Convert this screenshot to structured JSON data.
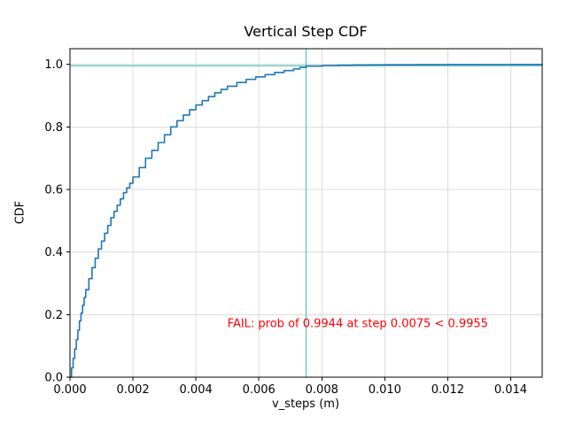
{
  "figure": {
    "background": "#ffffff"
  },
  "chart_data": {
    "type": "line",
    "title": "Vertical Step CDF",
    "xlabel": "v_steps (m)",
    "ylabel": "CDF",
    "xlim": [
      0,
      0.015
    ],
    "ylim": [
      0,
      1.05
    ],
    "xticks": [
      0,
      0.002,
      0.004,
      0.006,
      0.008,
      0.01,
      0.012,
      0.014
    ],
    "xtick_labels": [
      "0.000",
      "0.002",
      "0.004",
      "0.006",
      "0.008",
      "0.010",
      "0.012",
      "0.014"
    ],
    "yticks": [
      0.0,
      0.2,
      0.4,
      0.6,
      0.8,
      1.0
    ],
    "ytick_labels": [
      "0.0",
      "0.2",
      "0.4",
      "0.6",
      "0.8",
      "1.0"
    ],
    "grid": true,
    "grid_color": "#dcdcdc",
    "step_style": "post",
    "series": [
      {
        "name": "vertical-step-cdf",
        "color": "#1f77b4",
        "x": [
          0,
          5e-05,
          0.0001,
          0.00015,
          0.0002,
          0.00025,
          0.0003,
          0.00035,
          0.0004,
          0.00045,
          0.0005,
          0.0006,
          0.0007,
          0.0008,
          0.0009,
          0.001,
          0.0011,
          0.0012,
          0.0013,
          0.0014,
          0.0015,
          0.0016,
          0.0017,
          0.0018,
          0.0019,
          0.002,
          0.0022,
          0.0024,
          0.0026,
          0.0028,
          0.003,
          0.0032,
          0.0034,
          0.0036,
          0.0038,
          0.004,
          0.0042,
          0.0044,
          0.0046,
          0.0048,
          0.005,
          0.0053,
          0.0056,
          0.0059,
          0.0062,
          0.0065,
          0.0068,
          0.0071,
          0.0073,
          0.0075,
          0.008,
          0.0085,
          0.009,
          0.0095,
          0.01,
          0.011,
          0.012,
          0.013,
          0.014,
          0.015
        ],
        "y": [
          0.0,
          0.03,
          0.06,
          0.09,
          0.12,
          0.15,
          0.18,
          0.205,
          0.23,
          0.255,
          0.28,
          0.315,
          0.35,
          0.38,
          0.41,
          0.435,
          0.46,
          0.485,
          0.51,
          0.53,
          0.55,
          0.57,
          0.59,
          0.605,
          0.62,
          0.64,
          0.67,
          0.7,
          0.725,
          0.75,
          0.775,
          0.8,
          0.82,
          0.838,
          0.855,
          0.87,
          0.884,
          0.897,
          0.909,
          0.92,
          0.93,
          0.942,
          0.952,
          0.96,
          0.967,
          0.974,
          0.98,
          0.985,
          0.99,
          0.9944,
          0.9961,
          0.997,
          0.9977,
          0.9982,
          0.9986,
          0.999,
          0.9992,
          0.9994,
          0.9995,
          0.9996
        ]
      }
    ],
    "hline": {
      "y": 0.9955,
      "color": "#53c2ba"
    },
    "vline": {
      "x": 0.0075,
      "color": "#53c2ba"
    },
    "annotation": {
      "text": "FAIL: prob of 0.9944 at step 0.0075 < 0.9955",
      "x": 0.005,
      "y": 0.17,
      "color": "#ff0000"
    }
  }
}
